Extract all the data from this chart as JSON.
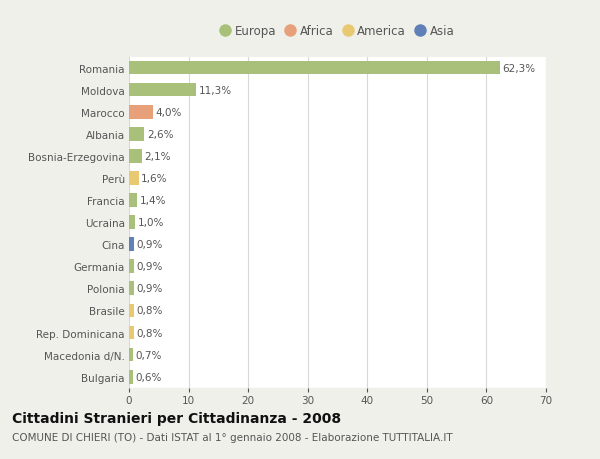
{
  "countries": [
    "Romania",
    "Moldova",
    "Marocco",
    "Albania",
    "Bosnia-Erzegovina",
    "Perù",
    "Francia",
    "Ucraina",
    "Cina",
    "Germania",
    "Polonia",
    "Brasile",
    "Rep. Dominicana",
    "Macedonia d/N.",
    "Bulgaria"
  ],
  "values": [
    62.3,
    11.3,
    4.0,
    2.6,
    2.1,
    1.6,
    1.4,
    1.0,
    0.9,
    0.9,
    0.9,
    0.8,
    0.8,
    0.7,
    0.6
  ],
  "labels": [
    "62,3%",
    "11,3%",
    "4,0%",
    "2,6%",
    "2,1%",
    "1,6%",
    "1,4%",
    "1,0%",
    "0,9%",
    "0,9%",
    "0,9%",
    "0,8%",
    "0,8%",
    "0,7%",
    "0,6%"
  ],
  "colors": [
    "#a8c07a",
    "#a8c07a",
    "#e8a07a",
    "#a8c07a",
    "#a8c07a",
    "#e8c870",
    "#a8c07a",
    "#a8c07a",
    "#6080b8",
    "#a8c07a",
    "#a8c07a",
    "#e8c870",
    "#e8c870",
    "#a8c07a",
    "#a8c07a"
  ],
  "legend_labels": [
    "Europa",
    "Africa",
    "America",
    "Asia"
  ],
  "legend_colors": [
    "#a8c07a",
    "#e8a07a",
    "#e8c870",
    "#6080b8"
  ],
  "title": "Cittadini Stranieri per Cittadinanza - 2008",
  "subtitle": "COMUNE DI CHIERI (TO) - Dati ISTAT al 1° gennaio 2008 - Elaborazione TUTTITALIA.IT",
  "xlim": [
    0,
    70
  ],
  "xticks": [
    0,
    10,
    20,
    30,
    40,
    50,
    60,
    70
  ],
  "background_color": "#f0f0eb",
  "plot_background": "#ffffff",
  "grid_color": "#d8d8d8",
  "bar_height": 0.62,
  "title_fontsize": 10,
  "subtitle_fontsize": 7.5,
  "label_fontsize": 7.5,
  "tick_fontsize": 7.5,
  "legend_fontsize": 8.5
}
